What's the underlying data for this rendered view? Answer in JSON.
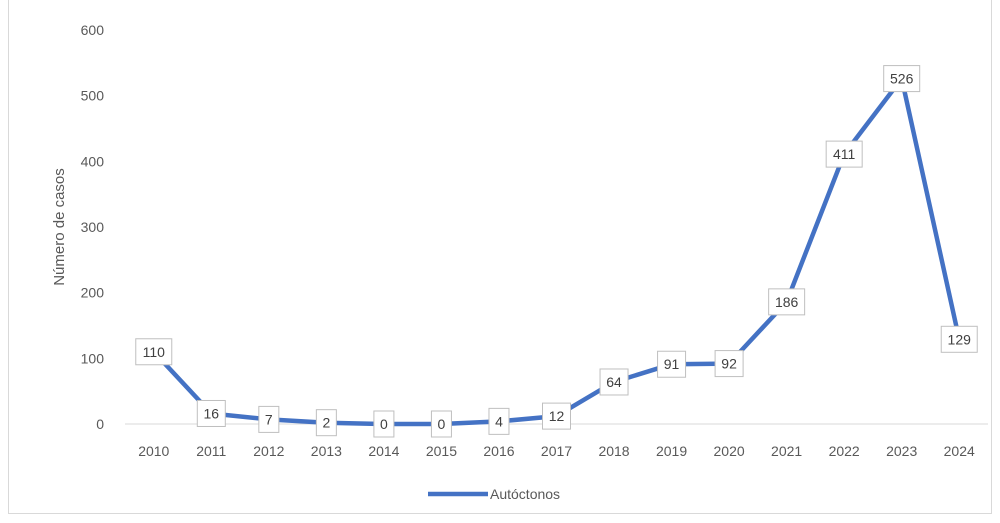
{
  "chart_data": {
    "type": "line",
    "title": "",
    "xlabel": "",
    "ylabel": "Número de casos",
    "ylim": [
      0,
      600
    ],
    "yticks": [
      0,
      100,
      200,
      300,
      400,
      500,
      600
    ],
    "categories": [
      "2010",
      "2011",
      "2012",
      "2013",
      "2014",
      "2015",
      "2016",
      "2017",
      "2018",
      "2019",
      "2020",
      "2021",
      "2022",
      "2023",
      "2024"
    ],
    "series": [
      {
        "name": "Autóctonos",
        "color": "#4472c4",
        "values": [
          110,
          16,
          7,
          2,
          0,
          0,
          4,
          12,
          64,
          91,
          92,
          186,
          411,
          526,
          129
        ]
      }
    ],
    "data_labels": true,
    "grid": false,
    "legend": "bottom-center"
  }
}
